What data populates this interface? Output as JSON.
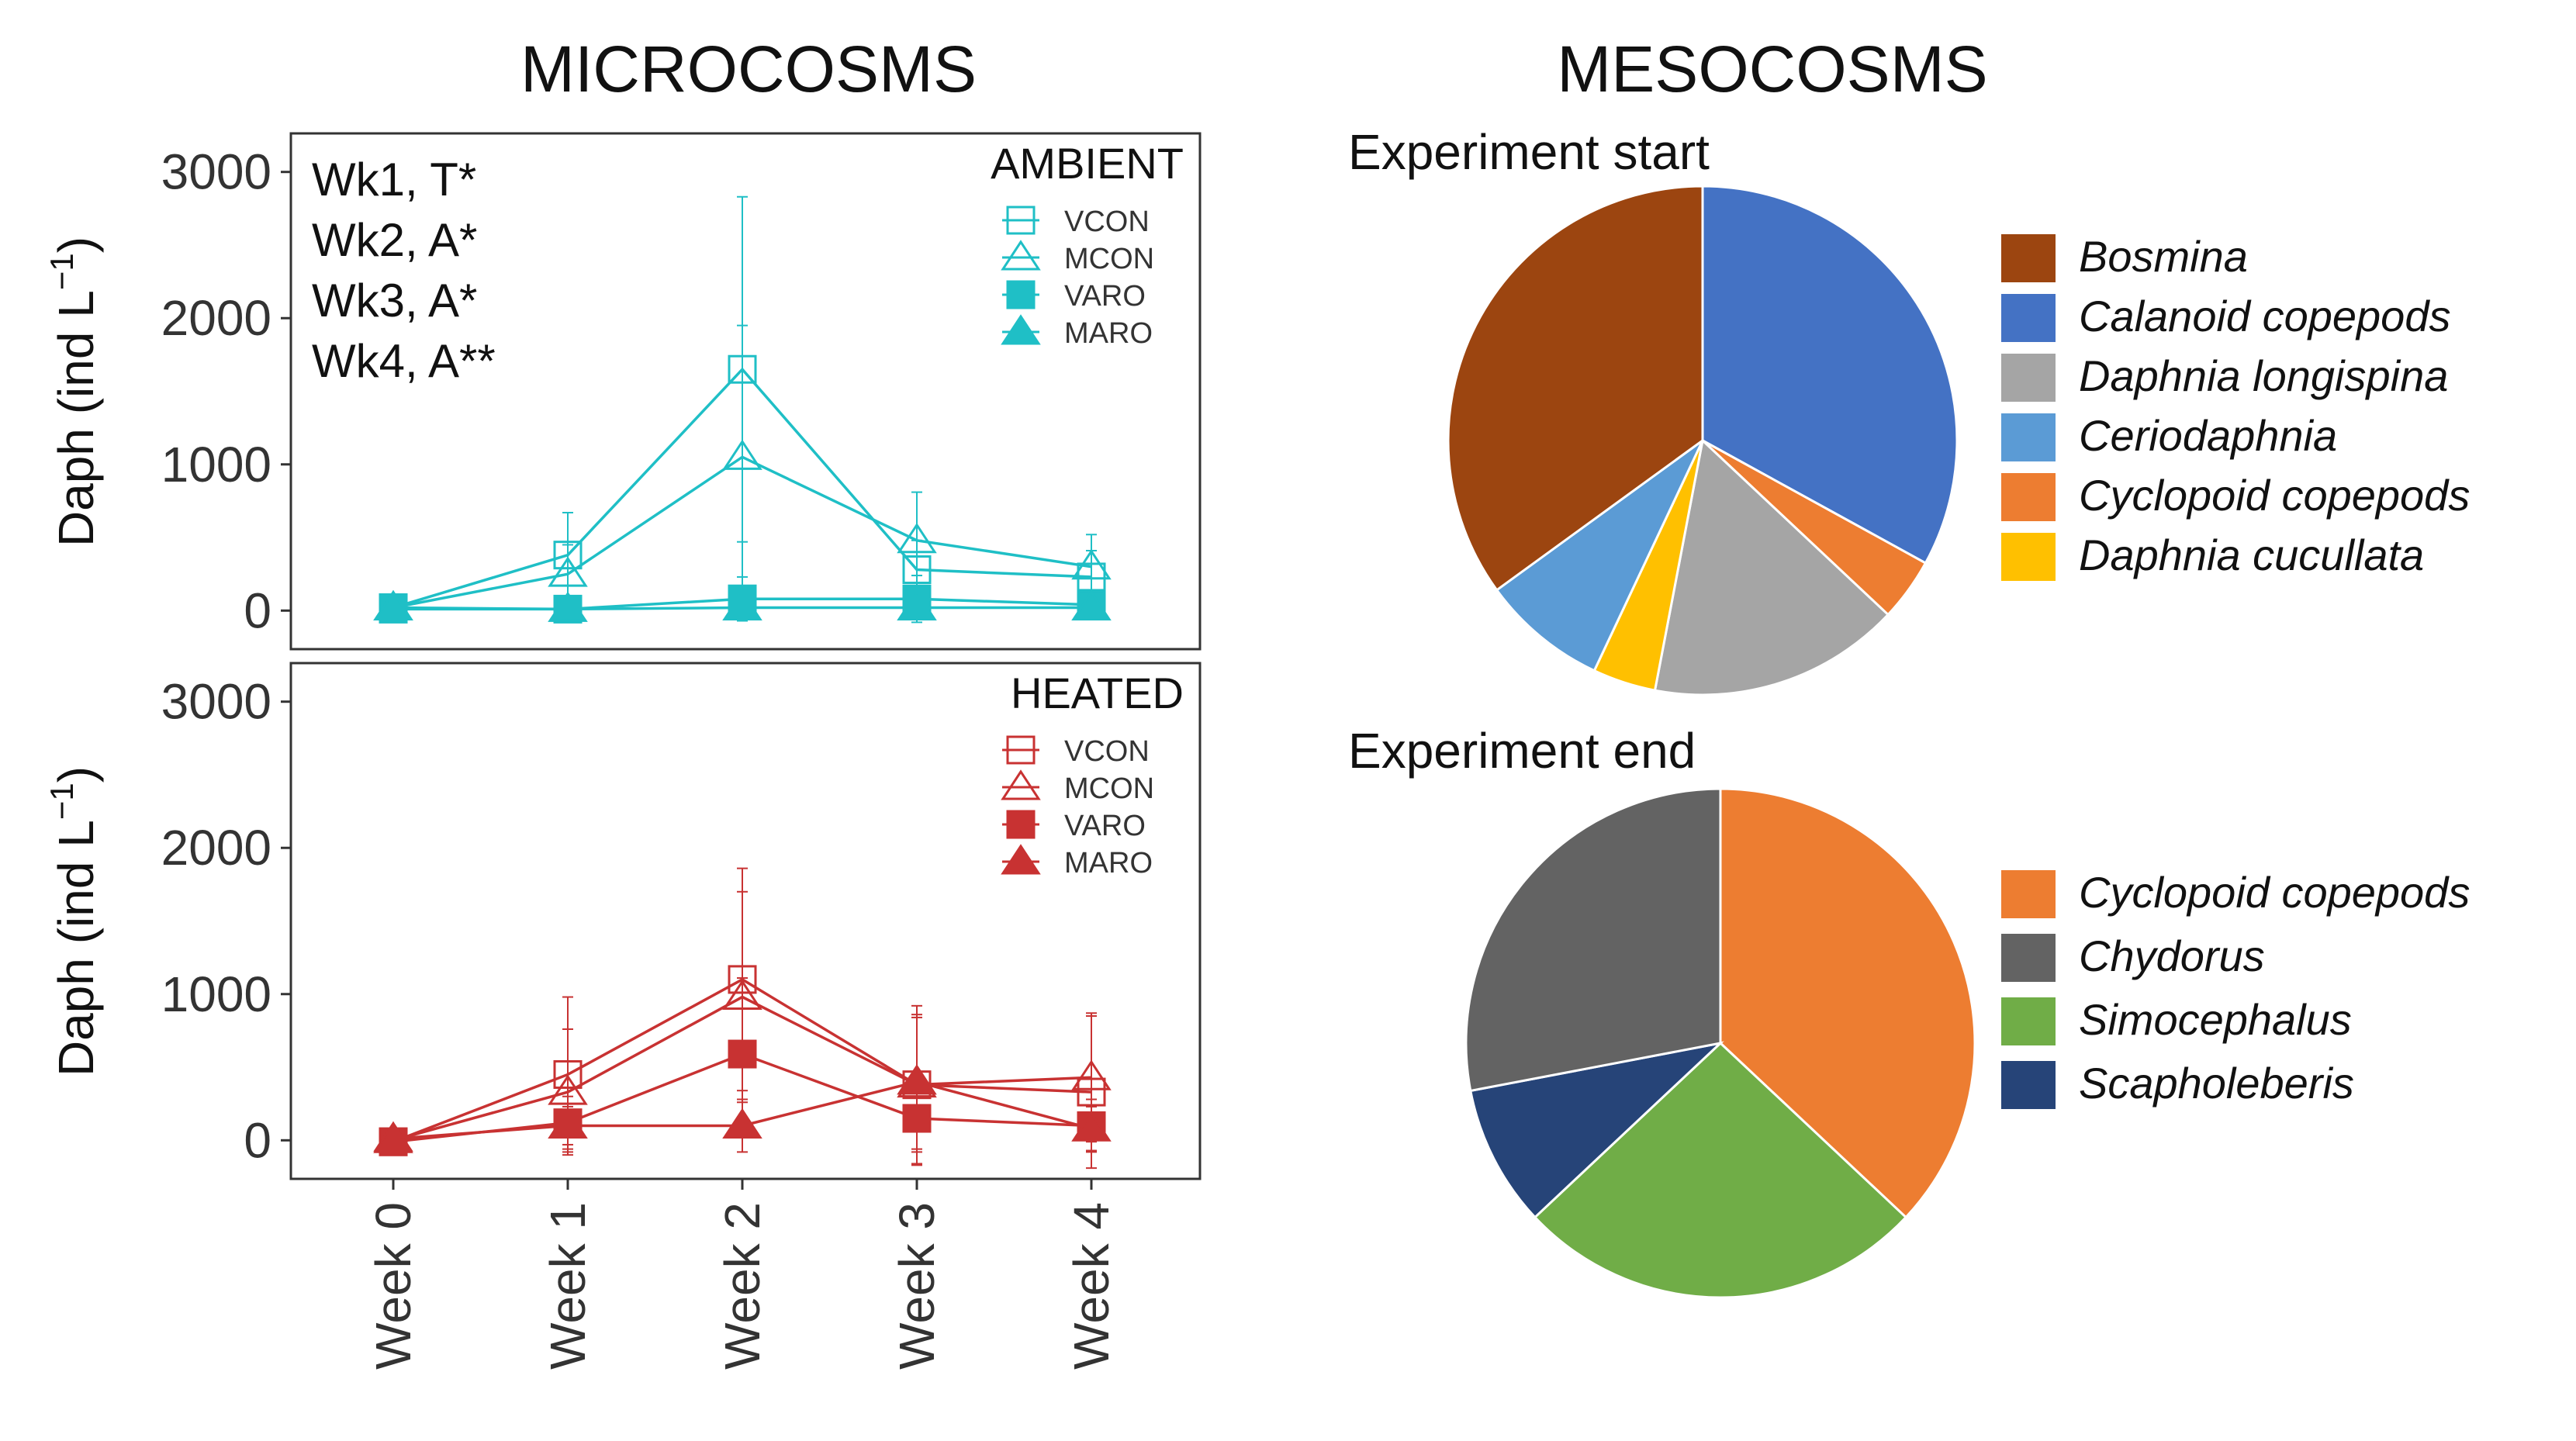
{
  "colors": {
    "ambient": "#1FBFC6",
    "heated": "#C83232"
  },
  "titles": {
    "microcosms": "MICROCOSMS",
    "mesocosms": "MESOCOSMS"
  },
  "stats_annotations": [
    "Wk1, T*",
    "Wk2, A*",
    "Wk3, A*",
    "Wk4, A**"
  ],
  "chart_data": [
    {
      "id": "ambient",
      "type": "line",
      "section": "MICROCOSMS",
      "legend_title": "AMBIENT",
      "legend_position": "top-right",
      "categories": [
        "Week 0",
        "Week 1",
        "Week 2",
        "Week 3",
        "Week 4"
      ],
      "ylabel": "Daph (ind L",
      "ylabel_sup": "−1",
      "ylabel_close": ")",
      "ylim": [
        -200,
        3200
      ],
      "yticks": [
        0,
        1000,
        2000,
        3000
      ],
      "series": [
        {
          "name": "VCON",
          "marker": "square-open",
          "values": [
            20,
            380,
            1650,
            280,
            230
          ],
          "err": [
            0,
            290,
            1180,
            200,
            180
          ]
        },
        {
          "name": "MCON",
          "marker": "triangle-open",
          "values": [
            20,
            250,
            1050,
            480,
            300
          ],
          "err": [
            0,
            200,
            900,
            330,
            220
          ]
        },
        {
          "name": "VARO",
          "marker": "square-filled",
          "values": [
            10,
            10,
            80,
            80,
            40
          ],
          "err": [
            0,
            20,
            150,
            160,
            80
          ]
        },
        {
          "name": "MARO",
          "marker": "triangle-filled",
          "values": [
            20,
            10,
            20,
            20,
            20
          ],
          "err": [
            0,
            15,
            60,
            60,
            40
          ]
        }
      ]
    },
    {
      "id": "heated",
      "type": "line",
      "section": "MICROCOSMS",
      "legend_title": "HEATED",
      "legend_position": "top-right",
      "categories": [
        "Week 0",
        "Week 1",
        "Week 2",
        "Week 3",
        "Week 4"
      ],
      "ylabel": "Daph (ind L",
      "ylabel_sup": "−1",
      "ylabel_close": ")",
      "ylim": [
        -200,
        3200
      ],
      "yticks": [
        0,
        1000,
        2000,
        3000
      ],
      "series": [
        {
          "name": "VCON",
          "marker": "square-open",
          "values": [
            -10,
            450,
            1100,
            380,
            330
          ],
          "err": [
            0,
            530,
            760,
            540,
            520
          ]
        },
        {
          "name": "MCON",
          "marker": "triangle-open",
          "values": [
            0,
            330,
            980,
            380,
            430
          ],
          "err": [
            0,
            430,
            720,
            460,
            440
          ]
        },
        {
          "name": "VARO",
          "marker": "square-filled",
          "values": [
            -10,
            120,
            590,
            150,
            100
          ],
          "err": [
            0,
            180,
            520,
            320,
            180
          ]
        },
        {
          "name": "MARO",
          "marker": "triangle-filled",
          "values": [
            10,
            100,
            100,
            400,
            80
          ],
          "err": [
            0,
            130,
            180,
            460,
            150
          ]
        }
      ]
    },
    {
      "id": "pie-start",
      "type": "pie",
      "section": "MESOCOSMS",
      "title": "Experiment start",
      "legend_position": "right",
      "labels": [
        "Bosmina",
        "Calanoid copepods",
        "Daphnia longispina",
        "Ceriodaphnia",
        "Cyclopoid copepods",
        "Daphnia cucullata"
      ],
      "colors": [
        "#9C4510",
        "#4472C4",
        "#A5A5A5",
        "#5B9BD5",
        "#ED7D31",
        "#FFC000"
      ],
      "slice_order_clockwise": [
        "Calanoid copepods",
        "Cyclopoid copepods",
        "Daphnia longispina",
        "Daphnia cucullata",
        "Ceriodaphnia",
        "Bosmina"
      ],
      "slice_values_clockwise": [
        33,
        4,
        16,
        4,
        8,
        35
      ]
    },
    {
      "id": "pie-end",
      "type": "pie",
      "section": "MESOCOSMS",
      "title": "Experiment end",
      "legend_position": "right",
      "labels": [
        "Cyclopoid copepods",
        "Chydorus",
        "Simocephalus",
        "Scapholeberis"
      ],
      "colors": [
        "#ED7D31",
        "#636363",
        "#70AD47",
        "#264478"
      ],
      "slice_order_clockwise": [
        "Cyclopoid copepods",
        "Simocephalus",
        "Scapholeberis",
        "Chydorus"
      ],
      "slice_values_clockwise": [
        37,
        26,
        9,
        28
      ]
    }
  ]
}
